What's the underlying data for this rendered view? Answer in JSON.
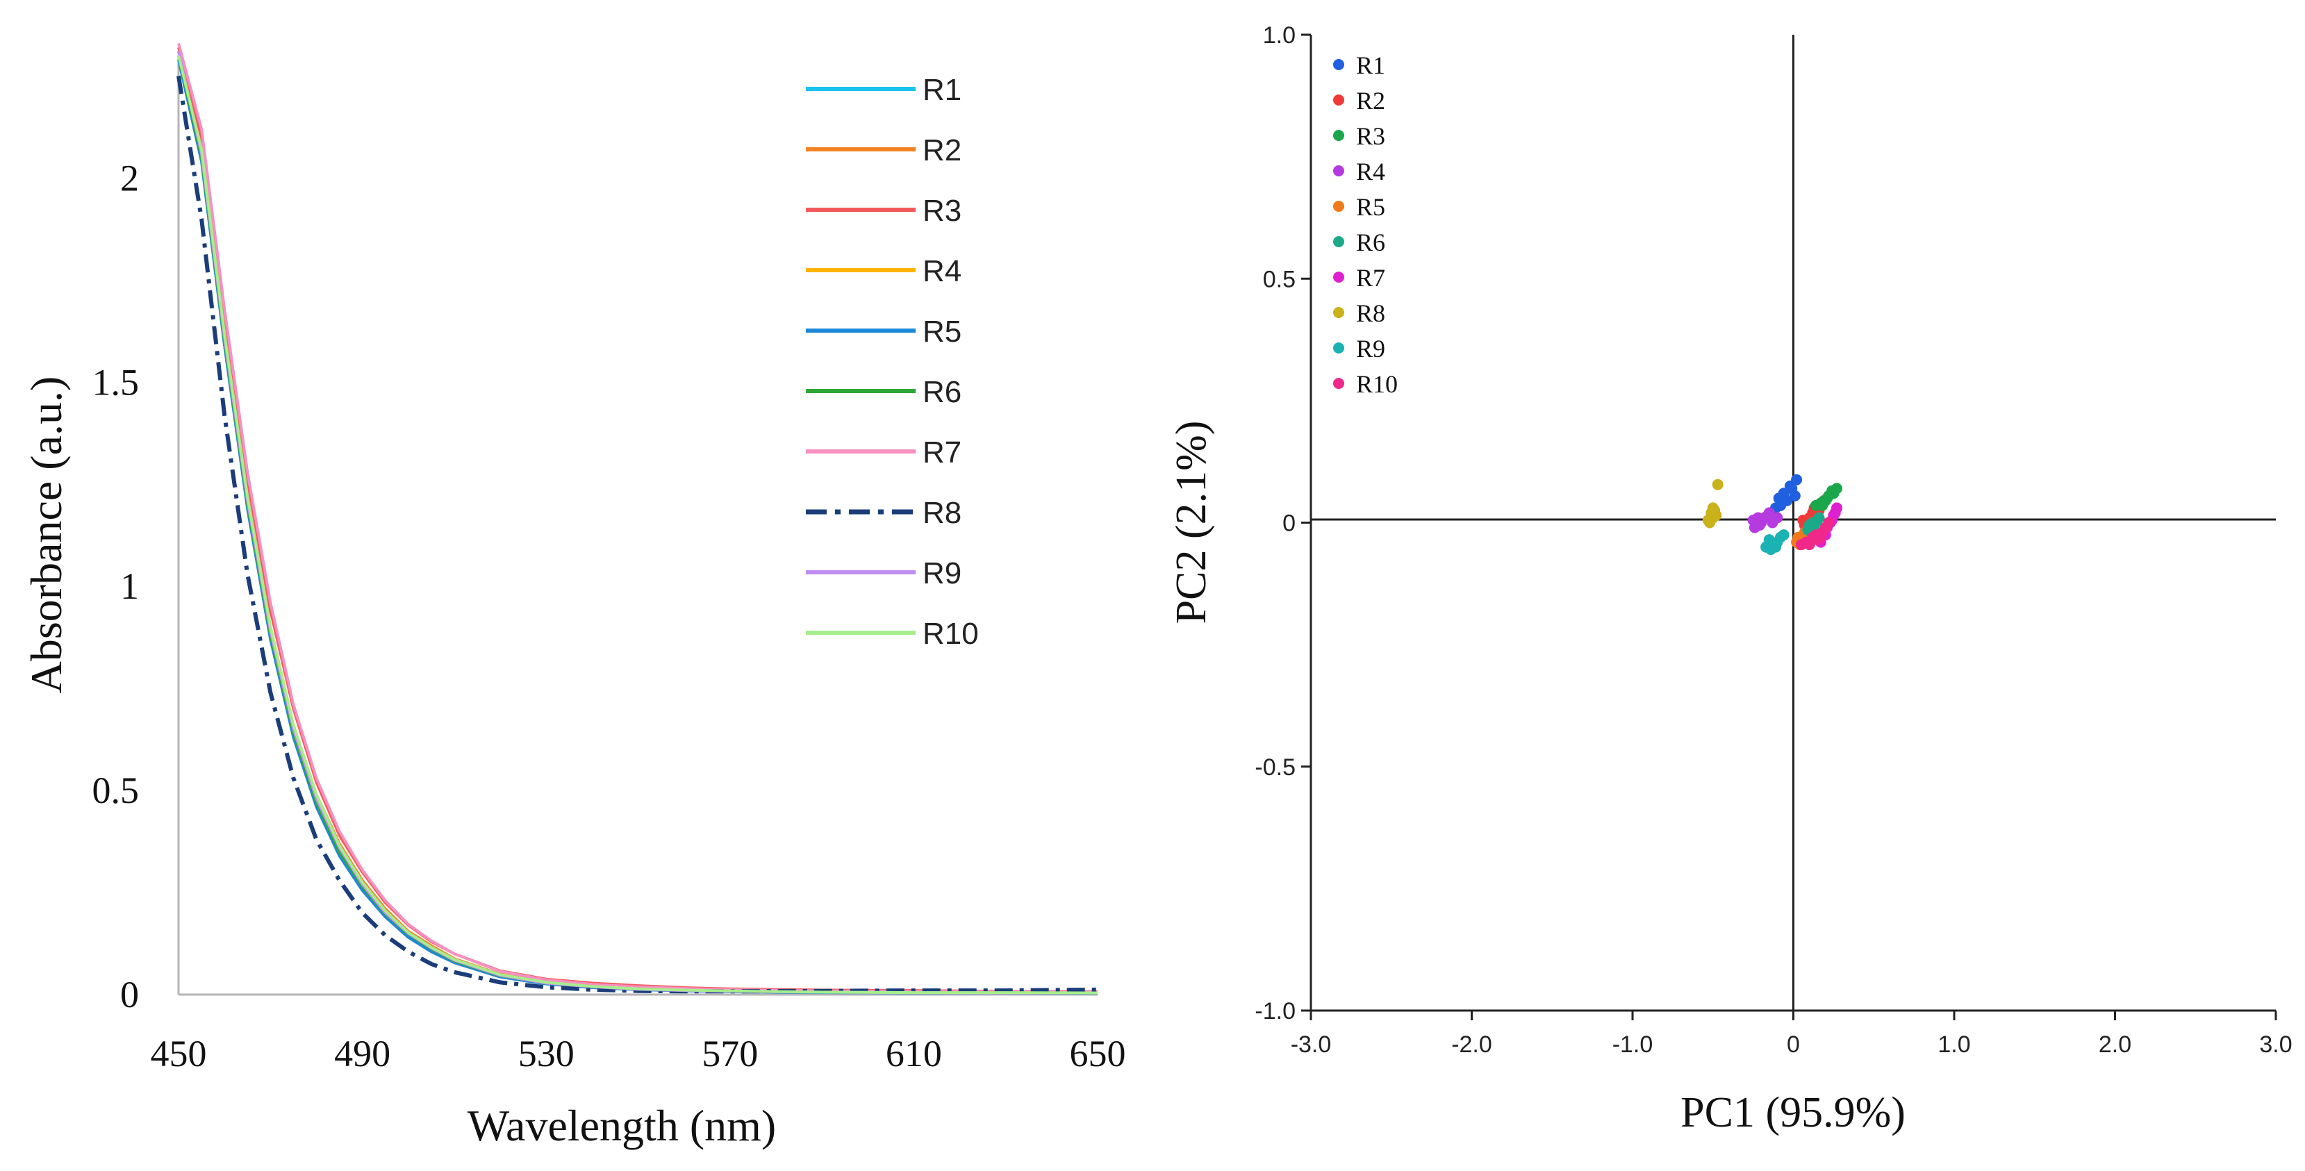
{
  "chart_data": [
    {
      "type": "line",
      "xlabel": "Wavelength (nm)",
      "ylabel": "Absorbance (a.u.)",
      "xlim": [
        450,
        650
      ],
      "ylim": [
        0,
        2.3
      ],
      "xticks": [
        450,
        490,
        530,
        570,
        610,
        650
      ],
      "yticks": [
        0,
        0.5,
        1,
        1.5,
        2
      ],
      "xtick_labels": [
        "450",
        "490",
        "530",
        "570",
        "610",
        "650"
      ],
      "ytick_labels": [
        "0",
        "0.5",
        "1",
        "1.5",
        "2"
      ],
      "legend_position": "top-right",
      "series": [
        {
          "name": "R1",
          "color": "#19c3f0",
          "style": "solid",
          "x": [
            450,
            455,
            460,
            465,
            470,
            475,
            480,
            485,
            490,
            495,
            500,
            505,
            510,
            520,
            530,
            540,
            550,
            560,
            570,
            590,
            610,
            630,
            650
          ],
          "y": [
            2.3,
            2.05,
            1.6,
            1.2,
            0.88,
            0.64,
            0.47,
            0.35,
            0.26,
            0.195,
            0.145,
            0.11,
            0.08,
            0.045,
            0.027,
            0.018,
            0.013,
            0.01,
            0.008,
            0.006,
            0.005,
            0.005,
            0.004
          ]
        },
        {
          "name": "R2",
          "color": "#f58220",
          "style": "solid",
          "x": [
            450,
            455,
            460,
            465,
            470,
            475,
            480,
            485,
            490,
            495,
            500,
            505,
            510,
            520,
            530,
            540,
            550,
            560,
            570,
            590,
            610,
            630,
            650
          ],
          "y": [
            2.31,
            2.07,
            1.62,
            1.22,
            0.9,
            0.66,
            0.49,
            0.37,
            0.28,
            0.21,
            0.155,
            0.12,
            0.088,
            0.05,
            0.03,
            0.02,
            0.015,
            0.012,
            0.01,
            0.007,
            0.006,
            0.005,
            0.005
          ]
        },
        {
          "name": "R3",
          "color": "#f25a5a",
          "style": "solid",
          "x": [
            450,
            455,
            460,
            465,
            470,
            475,
            480,
            485,
            490,
            495,
            500,
            505,
            510,
            520,
            530,
            540,
            550,
            560,
            570,
            590,
            610,
            630,
            650
          ],
          "y": [
            2.32,
            2.1,
            1.66,
            1.26,
            0.94,
            0.7,
            0.52,
            0.39,
            0.3,
            0.225,
            0.17,
            0.13,
            0.1,
            0.058,
            0.038,
            0.028,
            0.022,
            0.017,
            0.014,
            0.011,
            0.01,
            0.008,
            0.007
          ]
        },
        {
          "name": "R4",
          "color": "#ffb300",
          "style": "solid",
          "x": [
            450,
            455,
            460,
            465,
            470,
            475,
            480,
            485,
            490,
            495,
            500,
            505,
            510,
            520,
            530,
            540,
            550,
            560,
            570,
            590,
            610,
            630,
            650
          ],
          "y": [
            2.3,
            2.06,
            1.61,
            1.21,
            0.89,
            0.65,
            0.48,
            0.36,
            0.27,
            0.2,
            0.15,
            0.115,
            0.085,
            0.048,
            0.029,
            0.02,
            0.014,
            0.011,
            0.009,
            0.006,
            0.005,
            0.005,
            0.004
          ]
        },
        {
          "name": "R5",
          "color": "#1e88d8",
          "style": "solid",
          "x": [
            450,
            455,
            460,
            465,
            470,
            475,
            480,
            485,
            490,
            495,
            500,
            505,
            510,
            520,
            530,
            540,
            550,
            560,
            570,
            590,
            610,
            630,
            650
          ],
          "y": [
            2.29,
            2.04,
            1.59,
            1.19,
            0.87,
            0.63,
            0.46,
            0.34,
            0.255,
            0.19,
            0.14,
            0.105,
            0.078,
            0.043,
            0.026,
            0.017,
            0.012,
            0.009,
            0.007,
            0.005,
            0.004,
            0.004,
            0.003
          ]
        },
        {
          "name": "R6",
          "color": "#2ea83a",
          "style": "solid",
          "x": [
            450,
            455,
            460,
            465,
            470,
            475,
            480,
            485,
            490,
            495,
            500,
            505,
            510,
            520,
            530,
            540,
            550,
            560,
            570,
            590,
            610,
            630,
            650
          ],
          "y": [
            2.3,
            2.05,
            1.6,
            1.2,
            0.88,
            0.64,
            0.47,
            0.35,
            0.265,
            0.198,
            0.148,
            0.112,
            0.082,
            0.046,
            0.028,
            0.019,
            0.013,
            0.01,
            0.008,
            0.006,
            0.005,
            0.004,
            0.004
          ]
        },
        {
          "name": "R7",
          "color": "#f790c0",
          "style": "solid",
          "x": [
            450,
            455,
            460,
            465,
            470,
            475,
            480,
            485,
            490,
            495,
            500,
            505,
            510,
            520,
            530,
            540,
            550,
            560,
            570,
            590,
            610,
            630,
            650
          ],
          "y": [
            2.33,
            2.12,
            1.68,
            1.28,
            0.96,
            0.71,
            0.53,
            0.4,
            0.305,
            0.23,
            0.172,
            0.132,
            0.1,
            0.057,
            0.036,
            0.025,
            0.019,
            0.015,
            0.012,
            0.009,
            0.008,
            0.007,
            0.006
          ]
        },
        {
          "name": "R8",
          "color": "#1b3d7a",
          "style": "dashdot",
          "x": [
            450,
            455,
            460,
            465,
            470,
            475,
            480,
            485,
            490,
            495,
            500,
            505,
            510,
            520,
            530,
            540,
            550,
            560,
            570,
            590,
            610,
            630,
            650
          ],
          "y": [
            2.25,
            1.9,
            1.42,
            1.03,
            0.74,
            0.53,
            0.38,
            0.28,
            0.2,
            0.145,
            0.105,
            0.075,
            0.055,
            0.03,
            0.018,
            0.012,
            0.009,
            0.008,
            0.008,
            0.009,
            0.01,
            0.01,
            0.012
          ]
        },
        {
          "name": "R9",
          "color": "#c08ef0",
          "style": "solid",
          "x": [
            450,
            455,
            460,
            465,
            470,
            475,
            480,
            485,
            490,
            495,
            500,
            505,
            510,
            520,
            530,
            540,
            550,
            560,
            570,
            590,
            610,
            630,
            650
          ],
          "y": [
            2.31,
            2.06,
            1.61,
            1.21,
            0.89,
            0.65,
            0.48,
            0.36,
            0.27,
            0.2,
            0.15,
            0.114,
            0.084,
            0.047,
            0.028,
            0.019,
            0.013,
            0.01,
            0.008,
            0.006,
            0.005,
            0.004,
            0.004
          ]
        },
        {
          "name": "R10",
          "color": "#a6ee8c",
          "style": "solid",
          "x": [
            450,
            455,
            460,
            465,
            470,
            475,
            480,
            485,
            490,
            495,
            500,
            505,
            510,
            520,
            530,
            540,
            550,
            560,
            570,
            590,
            610,
            630,
            650
          ],
          "y": [
            2.3,
            2.07,
            1.62,
            1.22,
            0.9,
            0.66,
            0.49,
            0.365,
            0.275,
            0.205,
            0.152,
            0.116,
            0.086,
            0.049,
            0.03,
            0.02,
            0.014,
            0.011,
            0.009,
            0.006,
            0.005,
            0.005,
            0.004
          ]
        }
      ]
    },
    {
      "type": "scatter",
      "xlabel": "PC1 (95.9%)",
      "ylabel": "PC2 (2.1%)",
      "xlim": [
        -3.0,
        3.0
      ],
      "ylim": [
        -1.0,
        1.0
      ],
      "xticks": [
        -3,
        -2,
        -1,
        0,
        1,
        2,
        3
      ],
      "yticks": [
        -1,
        -0.5,
        0,
        0.5,
        1
      ],
      "xtick_labels": [
        "-3.0",
        "-2.0",
        "-1.0",
        "0",
        "1.0",
        "2.0",
        "3.0"
      ],
      "ytick_labels": [
        "-1.0",
        "-0.5",
        "0",
        "0.5",
        "1.0"
      ],
      "legend_position": "top-left",
      "series": [
        {
          "name": "R1",
          "color": "#1f5fe0",
          "points": [
            [
              -0.04,
              0.045
            ],
            [
              -0.08,
              0.035
            ],
            [
              -0.11,
              0.03
            ],
            [
              -0.14,
              0.015
            ],
            [
              -0.06,
              0.06
            ],
            [
              -0.02,
              0.075
            ],
            [
              0.02,
              0.088
            ],
            [
              -0.01,
              0.07
            ],
            [
              -0.09,
              0.05
            ],
            [
              0.01,
              0.055
            ]
          ]
        },
        {
          "name": "R2",
          "color": "#f03a3a",
          "points": [
            [
              0.08,
              0.0
            ],
            [
              0.1,
              0.01
            ],
            [
              0.12,
              0.02
            ],
            [
              0.14,
              0.015
            ],
            [
              0.09,
              -0.01
            ],
            [
              0.06,
              0.005
            ],
            [
              0.13,
              0.03
            ],
            [
              0.16,
              0.025
            ],
            [
              0.11,
              0.0
            ],
            [
              0.07,
              -0.005
            ]
          ]
        },
        {
          "name": "R3",
          "color": "#1aa64a",
          "points": [
            [
              0.14,
              0.035
            ],
            [
              0.17,
              0.04
            ],
            [
              0.2,
              0.045
            ],
            [
              0.22,
              0.055
            ],
            [
              0.25,
              0.06
            ],
            [
              0.27,
              0.07
            ],
            [
              0.18,
              0.035
            ],
            [
              0.21,
              0.05
            ],
            [
              0.24,
              0.065
            ],
            [
              0.19,
              0.045
            ]
          ]
        },
        {
          "name": "R4",
          "color": "#b53ae0",
          "points": [
            [
              -0.25,
              0.005
            ],
            [
              -0.22,
              0.01
            ],
            [
              -0.2,
              0.0
            ],
            [
              -0.24,
              -0.01
            ],
            [
              -0.18,
              0.01
            ],
            [
              -0.21,
              -0.005
            ],
            [
              -0.16,
              0.015
            ],
            [
              -0.13,
              0.0
            ],
            [
              -0.15,
              0.02
            ],
            [
              -0.1,
              0.01
            ]
          ]
        },
        {
          "name": "R5",
          "color": "#f07a1a",
          "points": [
            [
              0.02,
              -0.04
            ],
            [
              0.05,
              -0.035
            ],
            [
              0.08,
              -0.03
            ],
            [
              0.04,
              -0.045
            ],
            [
              0.07,
              -0.02
            ],
            [
              0.1,
              -0.025
            ],
            [
              0.03,
              -0.03
            ],
            [
              0.06,
              -0.04
            ]
          ]
        },
        {
          "name": "R6",
          "color": "#1aaa8a",
          "points": [
            [
              0.1,
              -0.005
            ],
            [
              0.12,
              0.0
            ],
            [
              0.15,
              0.005
            ],
            [
              0.13,
              -0.01
            ],
            [
              0.09,
              -0.015
            ],
            [
              0.16,
              0.01
            ],
            [
              0.11,
              -0.02
            ],
            [
              0.14,
              0.0
            ]
          ]
        },
        {
          "name": "R7",
          "color": "#e020d0",
          "points": [
            [
              0.15,
              -0.03
            ],
            [
              0.18,
              -0.02
            ],
            [
              0.21,
              -0.01
            ],
            [
              0.23,
              0.0
            ],
            [
              0.25,
              0.015
            ],
            [
              0.27,
              0.03
            ],
            [
              0.17,
              -0.04
            ],
            [
              0.2,
              -0.025
            ],
            [
              0.24,
              0.005
            ],
            [
              0.26,
              0.02
            ]
          ]
        },
        {
          "name": "R8",
          "color": "#c9b21a",
          "points": [
            [
              -0.52,
              0.0
            ],
            [
              -0.5,
              0.01
            ],
            [
              -0.51,
              0.02
            ],
            [
              -0.49,
              0.025
            ],
            [
              -0.5,
              0.03
            ],
            [
              -0.53,
              0.005
            ],
            [
              -0.48,
              0.015
            ],
            [
              -0.47,
              0.078
            ]
          ]
        },
        {
          "name": "R9",
          "color": "#1ab2b2",
          "points": [
            [
              -0.17,
              -0.05
            ],
            [
              -0.14,
              -0.055
            ],
            [
              -0.12,
              -0.045
            ],
            [
              -0.1,
              -0.04
            ],
            [
              -0.15,
              -0.035
            ],
            [
              -0.08,
              -0.03
            ],
            [
              -0.11,
              -0.05
            ],
            [
              -0.06,
              -0.025
            ]
          ]
        },
        {
          "name": "R10",
          "color": "#f0288a",
          "points": [
            [
              0.05,
              -0.045
            ],
            [
              0.08,
              -0.04
            ],
            [
              0.12,
              -0.03
            ],
            [
              0.15,
              -0.035
            ],
            [
              0.18,
              -0.02
            ],
            [
              0.2,
              -0.01
            ],
            [
              0.1,
              -0.045
            ],
            [
              0.14,
              -0.025
            ],
            [
              0.22,
              0.0
            ],
            [
              0.17,
              -0.03
            ]
          ]
        }
      ]
    }
  ]
}
